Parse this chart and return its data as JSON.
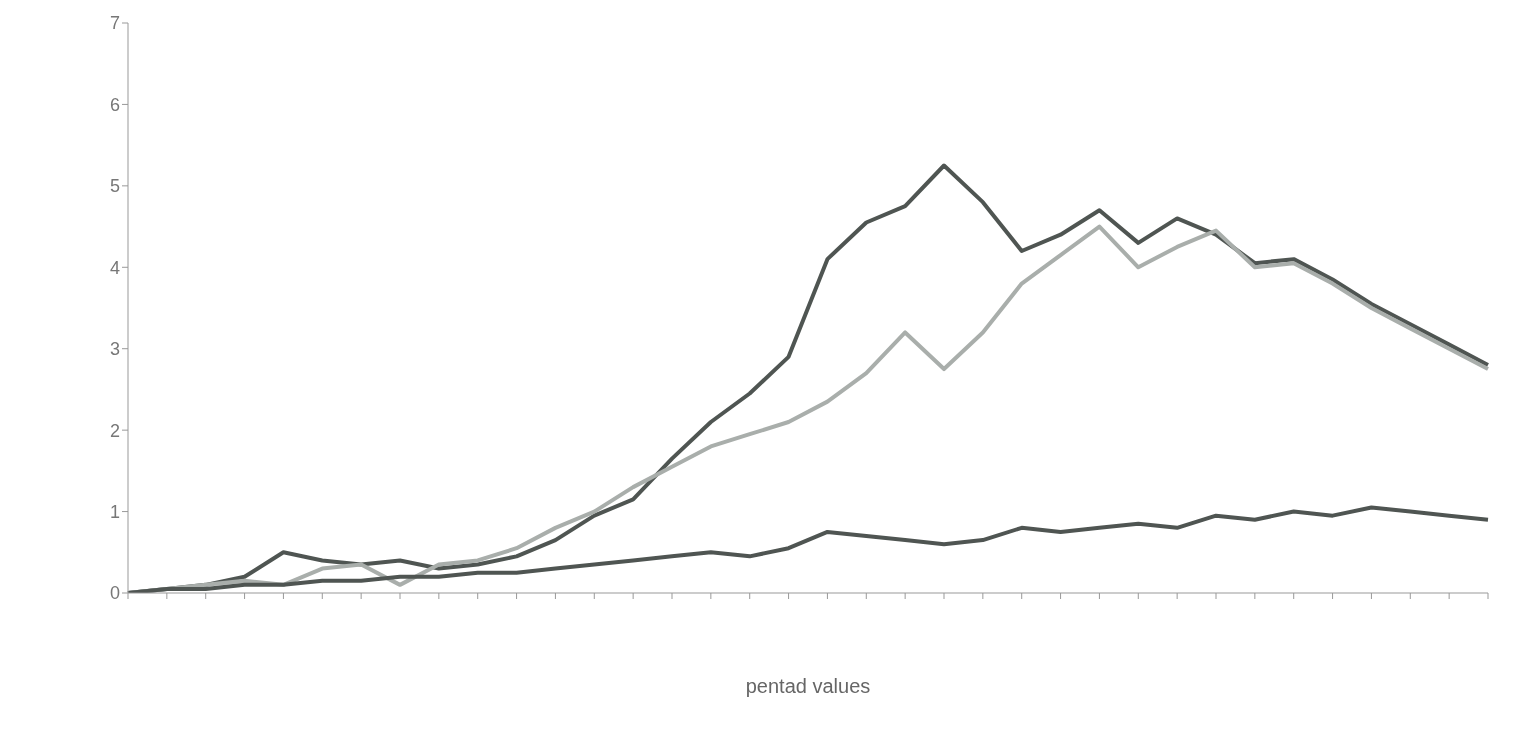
{
  "chart_data": {
    "type": "line",
    "xlabel": "pentad values",
    "categories": [
      null,
      null,
      null,
      null,
      null,
      null,
      null,
      null,
      null,
      null,
      null,
      null,
      null,
      null,
      null,
      null,
      null,
      null,
      null,
      null,
      null,
      null,
      null,
      null,
      null,
      null,
      null,
      null,
      null,
      null,
      null,
      null,
      null,
      null,
      null,
      null
    ],
    "series": [
      {
        "color": "#4f5552",
        "values": [
          0,
          0.05,
          0.1,
          0.2,
          0.5,
          0.4,
          0.35,
          0.4,
          0.3,
          0.35,
          0.45,
          0.65,
          0.95,
          1.15,
          1.65,
          2.1,
          2.45,
          2.9,
          4.1,
          4.55,
          4.75,
          5.25,
          4.8,
          4.2,
          4.4,
          4.7,
          4.3,
          4.6,
          4.4,
          4.05,
          4.1,
          3.85,
          3.55,
          3.3,
          3.05,
          2.8
        ]
      },
      {
        "color": "#a9aeab",
        "values": [
          0,
          0.05,
          0.1,
          0.15,
          0.1,
          0.3,
          0.35,
          0.1,
          0.35,
          0.4,
          0.55,
          0.8,
          1.0,
          1.3,
          1.55,
          1.8,
          1.95,
          2.1,
          2.35,
          2.7,
          3.2,
          2.75,
          3.2,
          3.8,
          4.15,
          4.5,
          4.0,
          4.25,
          4.45,
          4.0,
          4.05,
          3.8,
          3.5,
          3.25,
          3.0,
          2.75
        ]
      },
      {
        "color": "#4f5552",
        "values": [
          0,
          0.05,
          0.05,
          0.1,
          0.1,
          0.15,
          0.15,
          0.2,
          0.2,
          0.25,
          0.25,
          0.3,
          0.35,
          0.4,
          0.45,
          0.5,
          0.45,
          0.55,
          0.75,
          0.7,
          0.65,
          0.6,
          0.65,
          0.8,
          0.75,
          0.8,
          0.85,
          0.8,
          0.95,
          0.9,
          1.0,
          0.95,
          1.05,
          1.0,
          0.95,
          0.9
        ]
      }
    ],
    "ylim": [
      0,
      7
    ],
    "yticks": [
      0,
      1,
      2,
      3,
      4,
      5,
      6,
      7
    ],
    "legend": false,
    "marker": "none",
    "line_style": "solid"
  }
}
